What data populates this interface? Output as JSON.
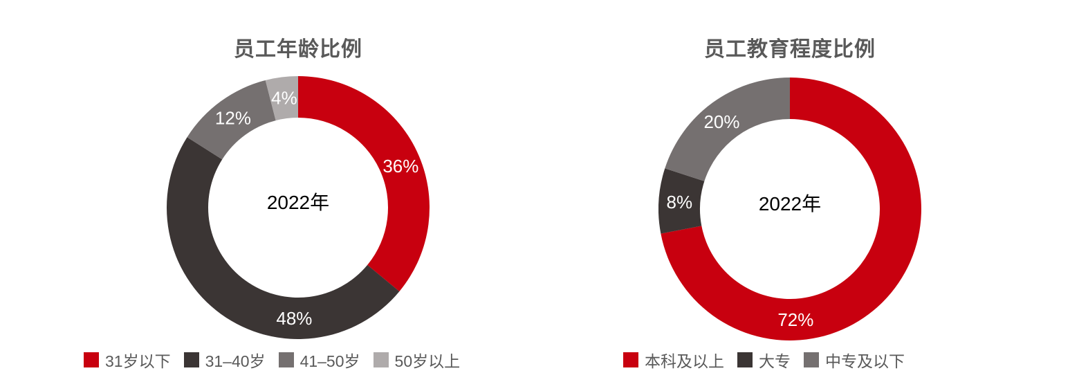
{
  "page": {
    "background_color": "#ffffff",
    "title_color": "#595959",
    "legend_text_color": "#595959",
    "segment_label_color": "#ffffff",
    "center_label_color": "#000000"
  },
  "chart_data": [
    {
      "type": "pie",
      "donut": true,
      "title": "员工年龄比例",
      "center_label": "2022年",
      "unit": "%",
      "start_angle_deg": 0,
      "direction": "clockwise",
      "legend_position": "bottom",
      "categories": [
        "31岁以下",
        "31–40岁",
        "41–50岁",
        "50岁以上"
      ],
      "values": [
        36,
        48,
        12,
        4
      ],
      "segments": [
        {
          "label": "31岁以下",
          "value": 36,
          "display": "36%",
          "color": "#c8000f",
          "label_angle_deg": 68
        },
        {
          "label": "31–40岁",
          "value": 48,
          "display": "48%",
          "color": "#3b3534",
          "label_angle_deg": 182
        },
        {
          "label": "41–50岁",
          "value": 12,
          "display": "12%",
          "color": "#757070",
          "label_angle_deg": 324
        },
        {
          "label": "50岁以上",
          "value": 4,
          "display": "4%",
          "color": "#afabab",
          "label_angle_deg": 352.8
        }
      ]
    },
    {
      "type": "pie",
      "donut": true,
      "title": "员工教育程度比例",
      "center_label": "2022年",
      "unit": "%",
      "start_angle_deg": 0,
      "direction": "clockwise",
      "legend_position": "bottom",
      "categories": [
        "本科及以上",
        "大专",
        "中专及以下"
      ],
      "values": [
        72,
        8,
        20
      ],
      "segments": [
        {
          "label": "本科及以上",
          "value": 72,
          "display": "72%",
          "color": "#c8000f",
          "label_angle_deg": 177
        },
        {
          "label": "大专",
          "value": 8,
          "display": "8%",
          "color": "#3b3534",
          "label_angle_deg": 273.6
        },
        {
          "label": "中专及以下",
          "value": 20,
          "display": "20%",
          "color": "#757070",
          "label_angle_deg": 322
        }
      ]
    }
  ]
}
